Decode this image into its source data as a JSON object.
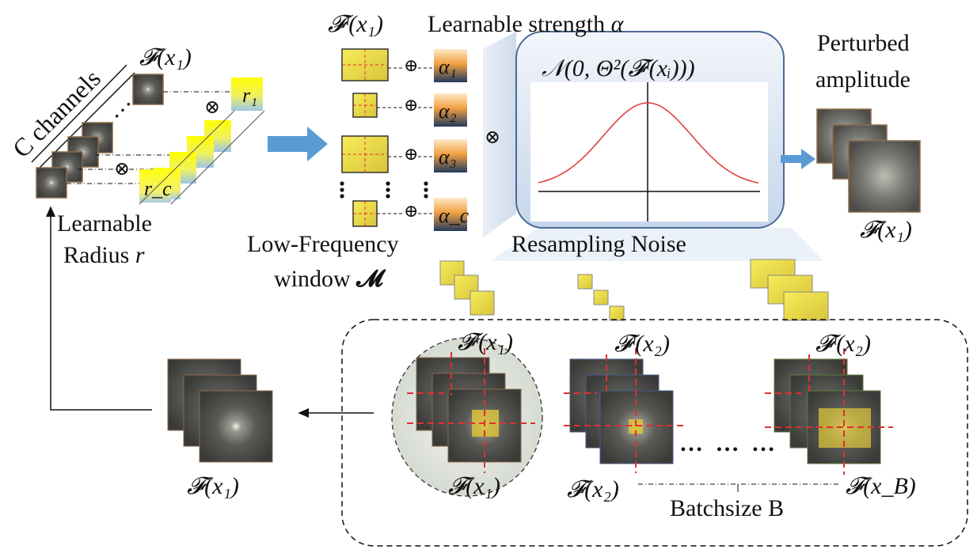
{
  "labels": {
    "c_channels": "C channels",
    "learnable_radius_line1": "Learnable",
    "learnable_radius_line2": "Radius",
    "radius_symbol": "r",
    "low_freq_line1": "Low-Frequency",
    "low_freq_line2": "window",
    "window_symbol": "𝓜",
    "learnable_strength": "Learnable strength",
    "strength_symbol": "α",
    "resampling_noise": "Resampling Noise",
    "perturbed_line1": "Perturbed",
    "perturbed_line2": "amplitude",
    "batchsize": "Batchsize B",
    "dots": "… … …"
  },
  "math": {
    "F_x1": "𝓕(x₁)",
    "Fl_x1": "𝓕ˡ(x₁)",
    "Fl_x2": "𝓕ˡ(x₂)",
    "F_x2": "𝓕(x₂)",
    "F_xB": "𝓕(x_B)",
    "noise_formula": "𝒩(0, Θ²(𝓕ˡ(xᵢ)))",
    "r1": "r₁",
    "rc": "r_c",
    "alphas": [
      "α₁",
      "α₂",
      "α₃",
      "α_c"
    ],
    "oplus": "⊕",
    "otimes": "⊗"
  },
  "colors": {
    "arrow_blue": "#5b9bd5",
    "window_yellow": "#e8d84a",
    "dashed_red": "#e03030",
    "curve_red": "#e04040",
    "spectrum_dark": "#3a3a3a"
  }
}
